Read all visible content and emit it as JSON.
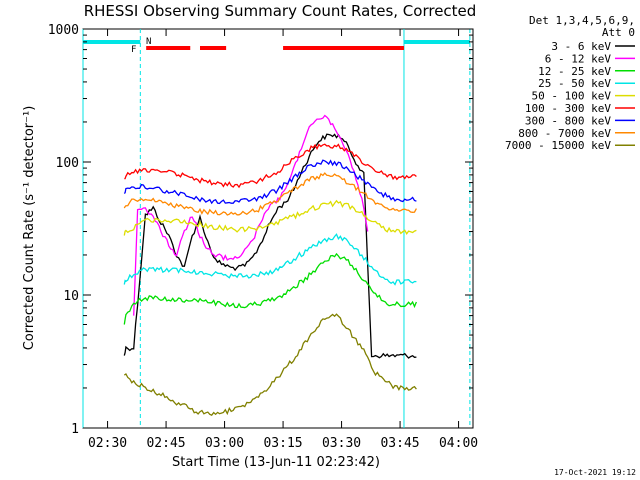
{
  "chart_data": {
    "type": "line",
    "title": "RHESSI Observing Summary Count Rates, Corrected",
    "xlabel": "Start Time (13-Jun-11 02:23:42)",
    "ylabel": "Corrected Count Rate (s⁻¹ detector⁻¹)",
    "xaxis": {
      "unit": "minutes after 02:23:42",
      "range": [
        0,
        100
      ],
      "ticks": [
        {
          "label": "02:30",
          "t": 6.3
        },
        {
          "label": "02:45",
          "t": 21.3
        },
        {
          "label": "03:00",
          "t": 36.3
        },
        {
          "label": "03:15",
          "t": 51.3
        },
        {
          "label": "03:30",
          "t": 66.3
        },
        {
          "label": "03:45",
          "t": 81.3
        },
        {
          "label": "04:00",
          "t": 96.3
        }
      ]
    },
    "yaxis": {
      "scale": "log",
      "range": [
        1,
        1000
      ],
      "ticks": [
        {
          "label": "1",
          "v": 1
        },
        {
          "label": "10",
          "v": 10
        },
        {
          "label": "100",
          "v": 100
        },
        {
          "label": "1000",
          "v": 1000
        }
      ]
    },
    "legend": {
      "position": "right",
      "header": [
        "Det 1,3,4,5,6,9,",
        "Att 0"
      ]
    },
    "series": [
      {
        "name": "3 - 6 keV",
        "color": "#000000",
        "x": [
          10.6,
          11,
          13,
          16,
          18,
          20,
          22,
          24,
          26,
          28,
          30,
          32,
          34,
          36,
          38,
          40,
          42,
          44,
          46,
          48,
          50,
          52,
          54,
          56,
          58,
          60,
          62,
          64,
          66,
          68,
          70,
          72,
          74,
          76,
          78,
          80,
          81.5,
          83,
          84.5,
          85.5
        ],
        "y": [
          3.5,
          4,
          4,
          40,
          45,
          35,
          28,
          20,
          16,
          28,
          38,
          25,
          18,
          17,
          16,
          16,
          17,
          20,
          26,
          35,
          45,
          50,
          62,
          85,
          110,
          140,
          155,
          160,
          155,
          130,
          100,
          80,
          3.5,
          3.5,
          3.5,
          3.5,
          3.5,
          3.5,
          3.5,
          3.5
        ]
      },
      {
        "name": "6 - 12 keV",
        "color": "#ff00ff",
        "x": [
          13,
          14,
          16,
          18,
          20,
          22,
          24,
          26,
          28,
          30,
          32,
          34,
          36,
          38,
          40,
          42,
          44,
          46,
          48,
          50,
          52,
          54,
          56,
          58,
          60,
          62,
          64,
          66,
          68,
          70,
          72,
          73
        ],
        "y": [
          7,
          45,
          45,
          38,
          30,
          24,
          20,
          30,
          40,
          28,
          22,
          20,
          19,
          19,
          20,
          22,
          28,
          38,
          48,
          52,
          62,
          88,
          130,
          180,
          210,
          215,
          190,
          150,
          110,
          75,
          45,
          30
        ]
      },
      {
        "name": "12 - 25 keV",
        "color": "#00dd00",
        "x": [
          10.6,
          11,
          13,
          16,
          20,
          25,
          30,
          35,
          40,
          45,
          50,
          55,
          58,
          62,
          65,
          68,
          72,
          75,
          78,
          80,
          81.5,
          83,
          84.5,
          85.5
        ],
        "y": [
          6,
          7,
          8.5,
          9.5,
          9.5,
          9.2,
          9.0,
          8.7,
          8.3,
          8.6,
          9.5,
          12,
          14,
          18,
          20,
          18,
          13,
          10,
          8.7,
          8.5,
          8.5,
          8.5,
          8.5,
          8.5
        ]
      },
      {
        "name": "25 - 50 keV",
        "color": "#00e5e5",
        "x": [
          10.6,
          11,
          13,
          16,
          20,
          25,
          30,
          35,
          40,
          45,
          50,
          55,
          58,
          62,
          65,
          68,
          72,
          75,
          78,
          80,
          81.5,
          83,
          84.5,
          85.5
        ],
        "y": [
          12,
          13,
          14.5,
          15.5,
          15.5,
          15.2,
          14.8,
          14.3,
          13.8,
          14.2,
          15.5,
          19.5,
          22,
          26,
          27.5,
          25,
          19,
          15,
          13,
          12.5,
          12.5,
          12.5,
          12.5,
          12.5
        ]
      },
      {
        "name": "50 - 100 keV",
        "color": "#dddd00",
        "x": [
          10.6,
          11,
          13,
          16,
          20,
          25,
          30,
          35,
          40,
          45,
          50,
          55,
          58,
          62,
          65,
          68,
          72,
          75,
          78,
          80,
          81.5,
          83,
          84.5,
          85.5
        ],
        "y": [
          28,
          30,
          32,
          36,
          37,
          36,
          34,
          32,
          31,
          32,
          35,
          40,
          44,
          48,
          49,
          47,
          40,
          35,
          31,
          30,
          30,
          30,
          30,
          30
        ]
      },
      {
        "name": "100 - 300 keV",
        "color": "#ff0000",
        "x": [
          10.6,
          11,
          13,
          16,
          20,
          25,
          30,
          35,
          40,
          45,
          50,
          55,
          58,
          62,
          65,
          68,
          72,
          75,
          78,
          80,
          81.5,
          83,
          84.5,
          85.5
        ],
        "y": [
          75,
          80,
          85,
          88,
          86,
          80,
          73,
          68,
          67,
          72,
          85,
          110,
          125,
          135,
          132,
          120,
          100,
          88,
          80,
          77,
          77,
          77,
          77,
          77
        ]
      },
      {
        "name": "300 - 800 keV",
        "color": "#0000ff",
        "x": [
          10.6,
          11,
          13,
          16,
          20,
          25,
          30,
          35,
          40,
          45,
          50,
          55,
          58,
          62,
          65,
          68,
          72,
          75,
          78,
          80,
          81.5,
          83,
          84.5,
          85.5
        ],
        "y": [
          58,
          62,
          65,
          65,
          62,
          57,
          52,
          50,
          50,
          53,
          62,
          80,
          92,
          100,
          98,
          88,
          72,
          62,
          55,
          52,
          52,
          52,
          52,
          52
        ]
      },
      {
        "name": "800 - 7000 keV",
        "color": "#ff8800",
        "x": [
          10.6,
          11,
          13,
          16,
          20,
          25,
          30,
          35,
          40,
          45,
          50,
          55,
          58,
          62,
          65,
          68,
          72,
          75,
          78,
          80,
          81.5,
          83,
          84.5,
          85.5
        ],
        "y": [
          45,
          48,
          52,
          52,
          50,
          46,
          43,
          41,
          41,
          44,
          52,
          65,
          74,
          80,
          78,
          70,
          58,
          50,
          45,
          43,
          43,
          43,
          43,
          43
        ]
      },
      {
        "name": "7000 - 15000 keV",
        "color": "#808000",
        "x": [
          10.6,
          11,
          13,
          16,
          20,
          25,
          30,
          35,
          40,
          45,
          50,
          55,
          58,
          62,
          65,
          68,
          72,
          75,
          78,
          80,
          81.5,
          83,
          84.5,
          85.5
        ],
        "y": [
          2.5,
          2.5,
          2.2,
          2.0,
          1.8,
          1.5,
          1.3,
          1.3,
          1.4,
          1.7,
          2.4,
          3.6,
          4.8,
          6.8,
          7.2,
          5.5,
          3.8,
          2.6,
          2.2,
          2.0,
          2.0,
          2.0,
          2.0,
          2.0
        ]
      }
    ],
    "annotations": {
      "flags": [
        {
          "label": "F",
          "color": "#ff0000"
        },
        {
          "label": "N",
          "color": "#00e5e5"
        }
      ],
      "night_bars": [
        {
          "t0": 0,
          "t1": 14.7
        },
        {
          "t0": 82.3,
          "t1": 99.2
        }
      ],
      "flare_bars": [
        {
          "t0": 16.2,
          "t1": 27.5
        },
        {
          "t0": 30,
          "t1": 36.7
        },
        {
          "t0": 51.3,
          "t1": 82.3
        }
      ],
      "night_boundaries": [
        0,
        14.7,
        82.3,
        99.2
      ],
      "night_color": "#00e5e5",
      "flare_color": "#ff0000"
    }
  },
  "footer": {
    "date_stamp": "17-Oct-2021 19:12"
  }
}
